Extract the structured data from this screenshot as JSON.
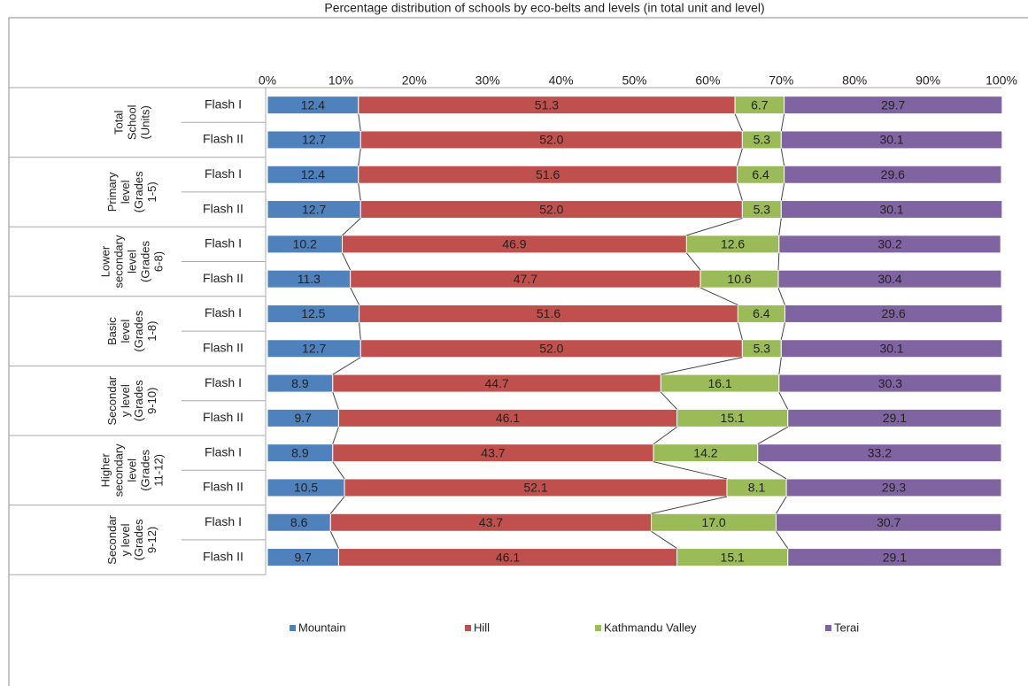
{
  "chart_data": {
    "type": "stacked_bar_horizontal",
    "title": "Percentage distribution of schools by eco-belts and levels (in total unit and level)",
    "groups": [
      [
        "Total",
        "School",
        "(Units)"
      ],
      [
        "Primary",
        "level",
        "(Grades",
        "1-5)"
      ],
      [
        "Lower",
        "secondary",
        "level",
        "(Grades",
        "6-8)"
      ],
      [
        "Basic",
        "level",
        "(Grades",
        "1-8)"
      ],
      [
        "Secondar",
        "y level",
        "(Grades",
        "9-10)"
      ],
      [
        "Higher",
        "secondary",
        "level",
        "(Grades",
        "11-12)"
      ],
      [
        "Secondar",
        "y level",
        "(Grades",
        "9-12)"
      ]
    ],
    "categories": [
      "Flash I",
      "Flash II",
      "Flash I",
      "Flash II",
      "Flash I",
      "Flash II",
      "Flash I",
      "Flash II",
      "Flash I",
      "Flash II",
      "Flash I",
      "Flash II",
      "Flash I",
      "Flash II"
    ],
    "series": [
      {
        "name": "Mountain",
        "color": "#4f81bd",
        "values": [
          12.4,
          12.7,
          12.4,
          12.7,
          10.2,
          11.3,
          12.5,
          12.7,
          8.9,
          9.7,
          8.9,
          10.5,
          8.6,
          9.7
        ],
        "value_labels": [
          "12.4",
          "12.7",
          "12.4",
          "12.7",
          "10.2",
          "11.3",
          "12.5",
          "12.7",
          "8.9",
          "9.7",
          "8.9",
          "10.5",
          "8.6",
          "9.7"
        ]
      },
      {
        "name": "Hill",
        "color": "#c0504d",
        "values": [
          51.3,
          52.0,
          51.6,
          52.0,
          46.9,
          47.7,
          51.6,
          52.0,
          44.7,
          46.1,
          43.7,
          52.1,
          43.7,
          46.1
        ],
        "value_labels": [
          "51.3",
          "52.0",
          "51.6",
          "52.0",
          "46.9",
          "47.7",
          "51.6",
          "52.0",
          "44.7",
          "46.1",
          "43.7",
          "52.1",
          "43.7",
          "46.1"
        ]
      },
      {
        "name": "Kathmandu Valley",
        "color": "#9bbb59",
        "values": [
          6.7,
          5.3,
          6.4,
          5.3,
          12.6,
          10.6,
          6.4,
          5.3,
          16.1,
          15.1,
          14.2,
          8.1,
          17.0,
          15.1
        ],
        "value_labels": [
          "6.7",
          "5.3",
          "6.4",
          "5.3",
          "12.6",
          "10.6",
          "6.4",
          "5.3",
          "16.1",
          "15.1",
          "14.2",
          "8.1",
          "17.0",
          "15.1"
        ]
      },
      {
        "name": "Terai",
        "color": "#8064a2",
        "values": [
          29.7,
          30.1,
          29.6,
          30.1,
          30.2,
          30.4,
          29.6,
          30.1,
          30.3,
          29.1,
          33.2,
          29.3,
          30.7,
          29.1
        ],
        "value_labels": [
          "29.7",
          "30.1",
          "29.6",
          "30.1",
          "30.2",
          "30.4",
          "29.6",
          "30.1",
          "30.3",
          "29.1",
          "33.2",
          "29.3",
          "30.7",
          "29.1"
        ]
      }
    ],
    "xlim": [
      0,
      100
    ],
    "xticks": [
      {
        "value": 0,
        "label": "0%"
      },
      {
        "value": 10,
        "label": "10%"
      },
      {
        "value": 20,
        "label": "20%"
      },
      {
        "value": 30,
        "label": "30%"
      },
      {
        "value": 40,
        "label": "40%"
      },
      {
        "value": 50,
        "label": "50%"
      },
      {
        "value": 60,
        "label": "60%"
      },
      {
        "value": 70,
        "label": "70%"
      },
      {
        "value": 80,
        "label": "80%"
      },
      {
        "value": 90,
        "label": "90%"
      },
      {
        "value": 100,
        "label": "100%"
      }
    ],
    "legend": "bottom"
  }
}
